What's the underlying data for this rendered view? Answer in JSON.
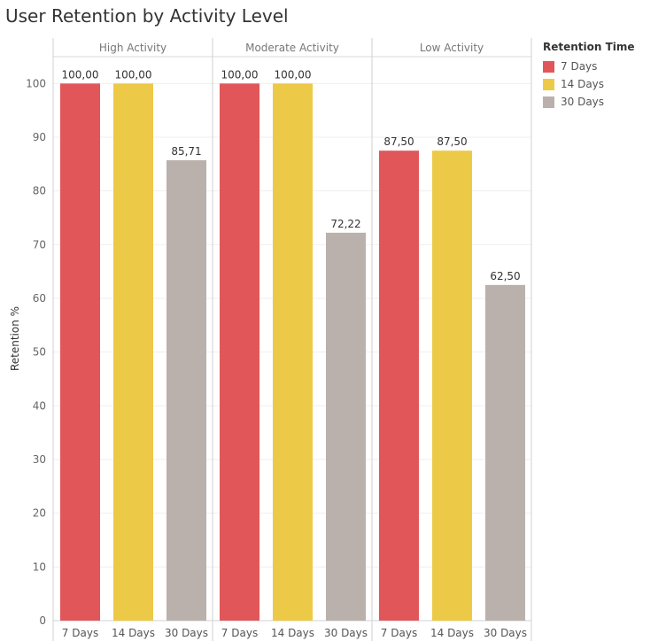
{
  "chart_data": {
    "type": "bar",
    "title": "User Retention by Activity Level",
    "ylabel": "Retention %",
    "xlabel": "",
    "ylim": [
      0,
      105
    ],
    "yticks": [
      0,
      10,
      20,
      30,
      40,
      50,
      60,
      70,
      80,
      90,
      100
    ],
    "panels": [
      "High Activity",
      "Moderate Activity",
      "Low Activity"
    ],
    "categories": [
      "7 Days",
      "14 Days",
      "30 Days"
    ],
    "series": [
      {
        "name": "7 Days",
        "color": "#e15759",
        "values": [
          100.0,
          100.0,
          87.5
        ]
      },
      {
        "name": "14 Days",
        "color": "#edc948",
        "values": [
          100.0,
          100.0,
          87.5
        ]
      },
      {
        "name": "30 Days",
        "color": "#bab0ac",
        "values": [
          85.71,
          72.22,
          62.5
        ]
      }
    ],
    "data_labels": [
      [
        "100,00",
        "100,00",
        "85,71"
      ],
      [
        "100,00",
        "100,00",
        "72,22"
      ],
      [
        "87,50",
        "87,50",
        "62,50"
      ]
    ],
    "legend": {
      "title": "Retention Time",
      "position": "right"
    },
    "grid": "horizontal"
  }
}
